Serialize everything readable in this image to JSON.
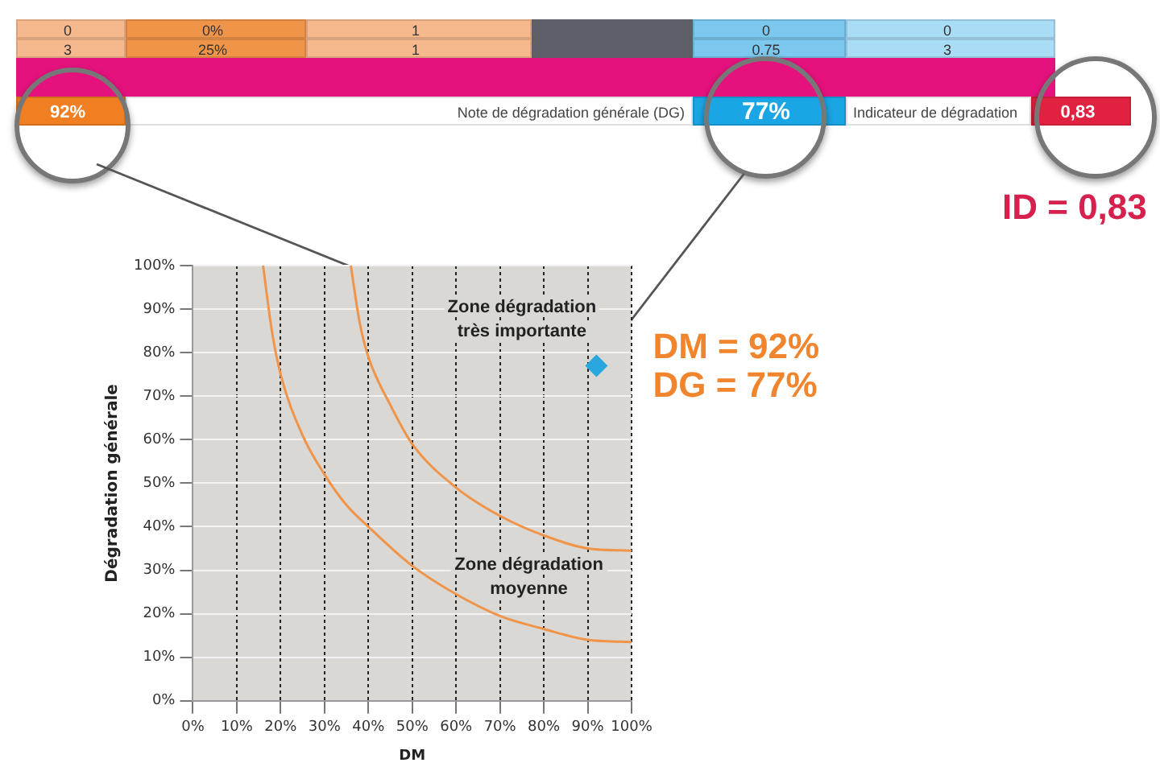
{
  "chart_data": [
    {
      "type": "other",
      "annotations": [
        "0",
        "0%",
        "1",
        "0",
        "0",
        "3",
        "25%",
        "1",
        "0.75",
        "3",
        "92%",
        "Note de dégradation générale (DG)",
        "77%",
        "Indicateur de dégradation",
        "0,83",
        "ID = 0,83"
      ]
    },
    {
      "type": "line",
      "xlabel": "DM",
      "ylabel": "Dégradation générale",
      "xlim": [
        0,
        100
      ],
      "ylim": [
        0,
        100
      ],
      "xticks": [
        {
          "value": 0,
          "label": "0%"
        },
        {
          "value": 10,
          "label": "10%"
        },
        {
          "value": 20,
          "label": "20%"
        },
        {
          "value": 30,
          "label": "30%"
        },
        {
          "value": 40,
          "label": "40%"
        },
        {
          "value": 50,
          "label": "50%"
        },
        {
          "value": 60,
          "label": "60%"
        },
        {
          "value": 70,
          "label": "70%"
        },
        {
          "value": 80,
          "label": "80%"
        },
        {
          "value": 90,
          "label": "90%"
        },
        {
          "value": 100,
          "label": "100%"
        }
      ],
      "yticks": [
        {
          "value": 0,
          "label": "0%"
        },
        {
          "value": 10,
          "label": "10%"
        },
        {
          "value": 20,
          "label": "20%"
        },
        {
          "value": 30,
          "label": "30%"
        },
        {
          "value": 40,
          "label": "40%"
        },
        {
          "value": 50,
          "label": "50%"
        },
        {
          "value": 60,
          "label": "60%"
        },
        {
          "value": 70,
          "label": "70%"
        },
        {
          "value": 80,
          "label": "80%"
        },
        {
          "value": 90,
          "label": "90%"
        },
        {
          "value": 100,
          "label": "100%"
        }
      ],
      "grid": true,
      "series": [
        {
          "color": "#f0944a",
          "marker": "none",
          "x": [
            16,
            18,
            20,
            25,
            30,
            35,
            40,
            50,
            60,
            70,
            80,
            90,
            100
          ],
          "values": [
            100,
            85,
            75,
            61,
            52,
            45,
            40,
            31,
            24.5,
            19.5,
            16.5,
            14,
            13.5
          ]
        },
        {
          "color": "#f0944a",
          "marker": "none",
          "x": [
            36,
            38,
            40,
            45,
            50,
            60,
            70,
            80,
            90,
            100
          ],
          "values": [
            100,
            87,
            79,
            68,
            59,
            49,
            42.5,
            38,
            35,
            34.5
          ]
        },
        {
          "type": "scatter",
          "color": "#29a8e0",
          "marker": "diamond",
          "x": [
            92
          ],
          "values": [
            77
          ]
        }
      ],
      "annotations": [
        "Zone dégradation\ntrès importante",
        "Zone dégradation\nmoyenne",
        {
          "text": "DM = 92%\nDG = 77%",
          "x": 92,
          "y": 77
        }
      ]
    }
  ]
}
